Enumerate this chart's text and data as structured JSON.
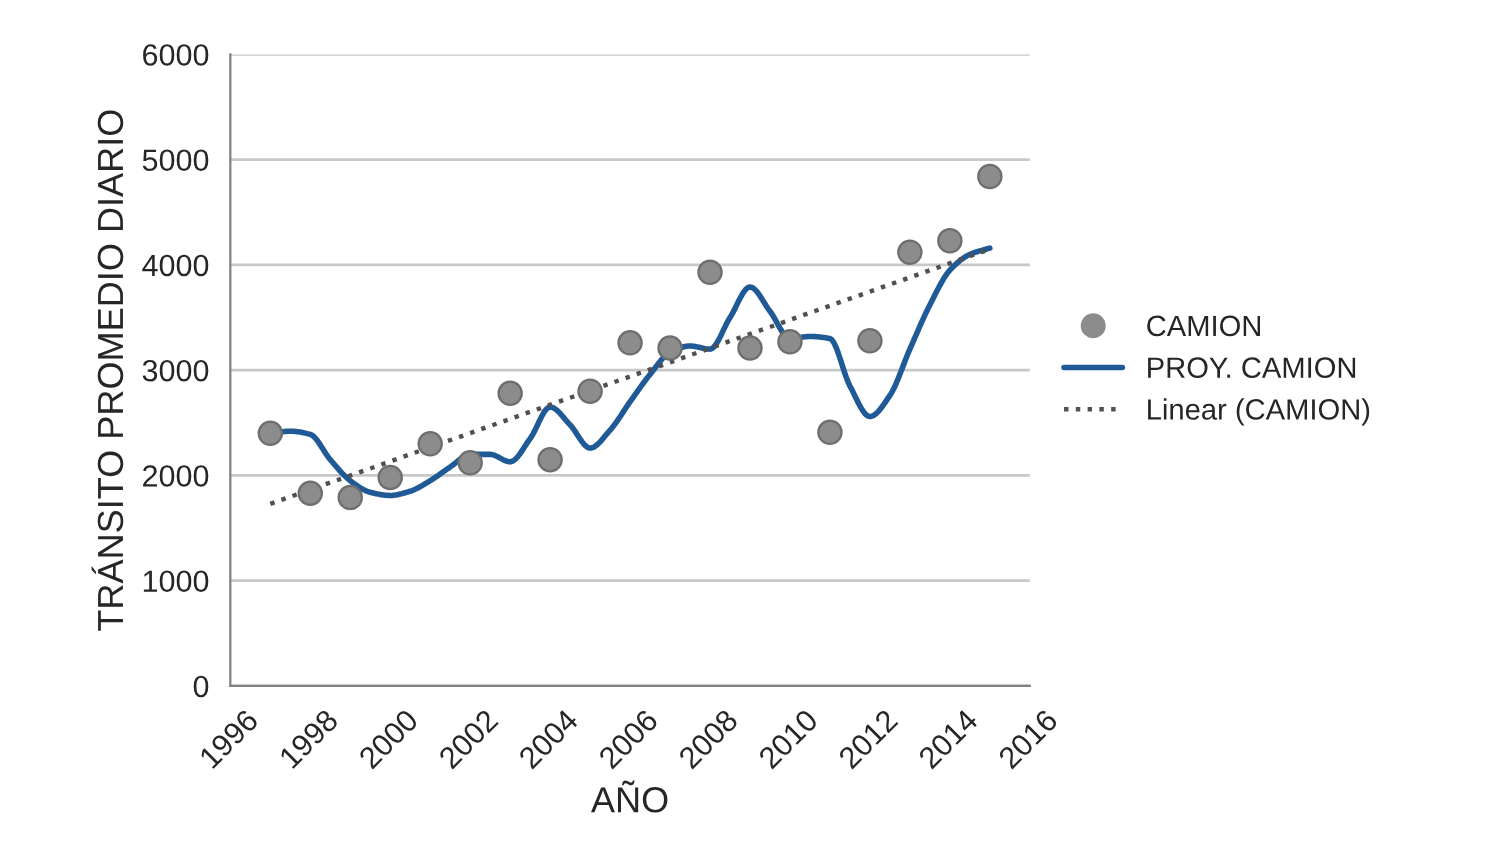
{
  "chart_data": {
    "type": "scatter",
    "xlabel": "AÑO",
    "ylabel": "TRÁNSITO PROMEDIO DIARIO",
    "x": [
      1997,
      1998,
      1999,
      2000,
      2001,
      2002,
      2003,
      2004,
      2005,
      2006,
      2007,
      2008,
      2009,
      2010,
      2011,
      2012,
      2013,
      2014,
      2015
    ],
    "series": [
      {
        "name": "CAMION",
        "type": "scatter",
        "color": "#8c8c8c",
        "marker": "circle",
        "values": [
          2400,
          1830,
          1790,
          1980,
          2300,
          2120,
          2780,
          2150,
          2800,
          3260,
          3210,
          3930,
          3210,
          3270,
          2410,
          3280,
          4120,
          4230,
          4840
        ]
      },
      {
        "name": "PROY. CAMION",
        "type": "line",
        "color": "#1f5a96",
        "line_style": "solid",
        "x": [
          1997,
          1997.5,
          1998,
          1998.5,
          1999,
          1999.5,
          2000,
          2000.5,
          2001,
          2001.5,
          2002,
          2002.5,
          2003,
          2003.5,
          2004,
          2004.5,
          2005,
          2005.5,
          2006,
          2006.5,
          2007,
          2007.5,
          2008,
          2008.5,
          2009,
          2009.5,
          2010,
          2010.5,
          2011,
          2011.5,
          2012,
          2012.5,
          2013,
          2013.5,
          2014,
          2014.5,
          2015
        ],
        "values": [
          2400,
          2420,
          2390,
          2150,
          1950,
          1840,
          1810,
          1850,
          1950,
          2080,
          2200,
          2200,
          2130,
          2350,
          2650,
          2480,
          2260,
          2430,
          2700,
          2960,
          3170,
          3230,
          3200,
          3500,
          3790,
          3560,
          3300,
          3320,
          3300,
          2850,
          2560,
          2760,
          3200,
          3620,
          3950,
          4100,
          4160
        ]
      },
      {
        "name": "Linear (CAMION)",
        "type": "line",
        "color": "#505050",
        "line_style": "dotted",
        "x": [
          1997,
          2015
        ],
        "values": [
          1730,
          4150
        ]
      }
    ],
    "xlim": [
      1996,
      2016
    ],
    "xticks": [
      1996,
      1998,
      2000,
      2002,
      2004,
      2006,
      2008,
      2010,
      2012,
      2014,
      2016
    ],
    "ylim": [
      0,
      6000
    ],
    "yticks": [
      0,
      1000,
      2000,
      3000,
      4000,
      5000,
      6000
    ],
    "grid": "y",
    "legend": "right"
  }
}
